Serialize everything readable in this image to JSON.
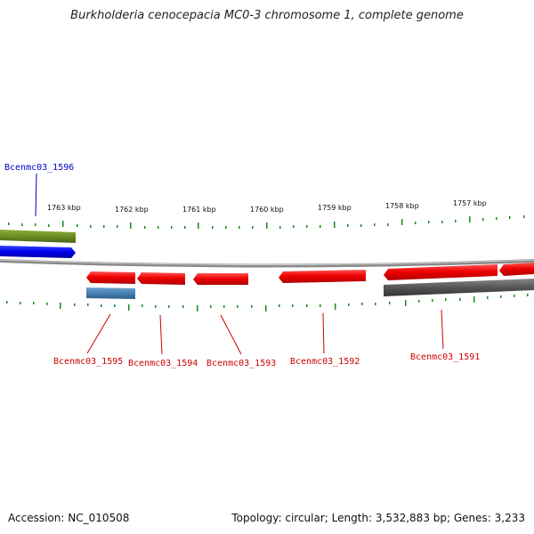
{
  "title": "Burkholderia cenocepacia MC0-3 chromosome 1, complete genome",
  "footer": {
    "accession": "Accession: NC_010508",
    "summary": "Topology: circular; Length: 3,532,883 bp; Genes: 3,233"
  },
  "ticks": [
    "1763 kbp",
    "1762 kbp",
    "1761 kbp",
    "1760 kbp",
    "1759 kbp",
    "1758 kbp",
    "1757 kbp"
  ],
  "genes": [
    {
      "name": "Bcenmc03_1596",
      "color": "#0000cc"
    },
    {
      "name": "Bcenmc03_1595",
      "color": "#cc0000"
    },
    {
      "name": "Bcenmc03_1594",
      "color": "#cc0000"
    },
    {
      "name": "Bcenmc03_1593",
      "color": "#cc0000"
    },
    {
      "name": "Bcenmc03_1592",
      "color": "#cc0000"
    },
    {
      "name": "Bcenmc03_1591",
      "color": "#cc0000"
    }
  ],
  "colors": {
    "forward_cds": "#0a14ee",
    "forward_gene": "#6b8e23",
    "reverse_cds": "#ee1111",
    "reverse_gene_blue": "#4682b4",
    "reverse_gene_gray": "#555555",
    "backbone": "#888888",
    "tick": "#1a8a1a"
  }
}
